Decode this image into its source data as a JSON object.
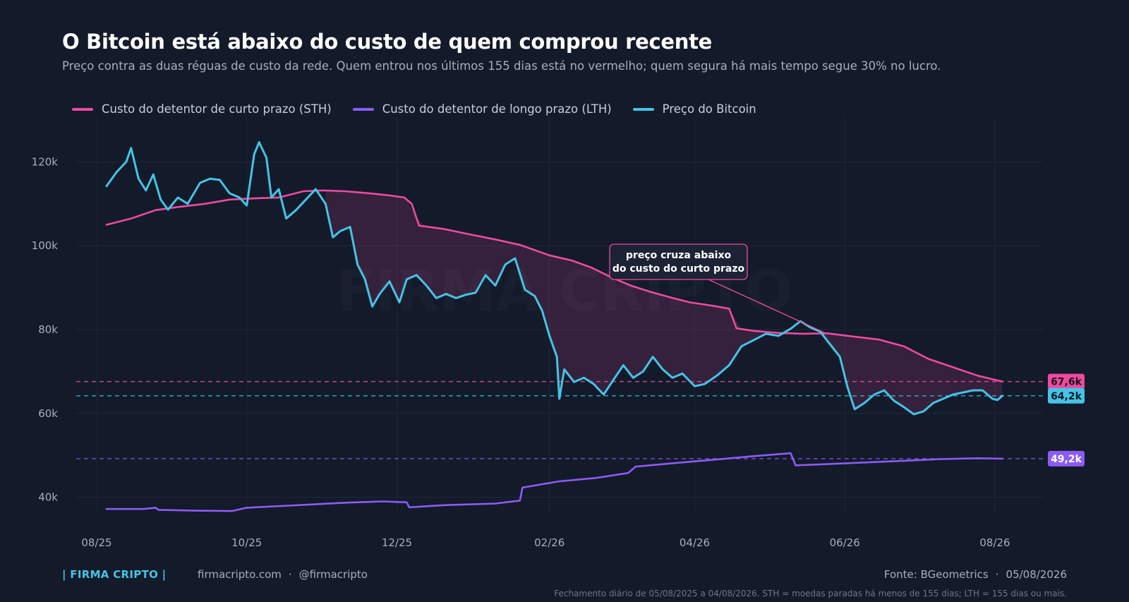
{
  "header": {
    "title": "O Bitcoin está abaixo do custo de quem comprou recente",
    "subtitle": "Preço contra as duas réguas de custo da rede. Quem entrou nos últimos 155 dias está no vermelho; quem segura há mais tempo segue 30% no lucro."
  },
  "legend": [
    {
      "label": "Custo do detentor de curto prazo (STH)",
      "color": "#ec4ba0"
    },
    {
      "label": "Custo do detentor de longo prazo (LTH)",
      "color": "#8b5cf6"
    },
    {
      "label": "Preço do Bitcoin",
      "color": "#45c3e6"
    }
  ],
  "watermark": "FIRMA CRIPTO",
  "chart_data": {
    "type": "line",
    "x_range": [
      "2025-08-05",
      "2026-08-04"
    ],
    "x_ticks": [
      {
        "date": "2025-08-01",
        "label": "08/25"
      },
      {
        "date": "2025-10-01",
        "label": "10/25"
      },
      {
        "date": "2025-12-01",
        "label": "12/25"
      },
      {
        "date": "2026-02-01",
        "label": "02/26"
      },
      {
        "date": "2026-04-01",
        "label": "04/26"
      },
      {
        "date": "2026-06-01",
        "label": "06/26"
      },
      {
        "date": "2026-08-01",
        "label": "08/26"
      }
    ],
    "y_ticks": [
      {
        "value": 40000,
        "label": "40k"
      },
      {
        "value": 60000,
        "label": "60k"
      },
      {
        "value": 80000,
        "label": "80k"
      },
      {
        "value": 100000,
        "label": "100k"
      },
      {
        "value": 120000,
        "label": "120k"
      }
    ],
    "ylim": [
      31000,
      130000
    ],
    "grid": true,
    "legend_position": "top-left",
    "series": [
      {
        "name": "Custo do detentor de curto prazo (STH)",
        "color": "#ec4ba0",
        "points": [
          [
            "2025-08-05",
            105000
          ],
          [
            "2025-08-15",
            106500
          ],
          [
            "2025-08-25",
            108500
          ],
          [
            "2025-09-04",
            109300
          ],
          [
            "2025-09-14",
            110000
          ],
          [
            "2025-09-24",
            111000
          ],
          [
            "2025-10-04",
            111300
          ],
          [
            "2025-10-14",
            111500
          ],
          [
            "2025-10-24",
            113000
          ],
          [
            "2025-11-01",
            113200
          ],
          [
            "2025-11-10",
            113000
          ],
          [
            "2025-11-20",
            112500
          ],
          [
            "2025-11-28",
            112000
          ],
          [
            "2025-12-04",
            111500
          ],
          [
            "2025-12-07",
            110000
          ],
          [
            "2025-12-10",
            104800
          ],
          [
            "2025-12-20",
            104000
          ],
          [
            "2025-12-30",
            102800
          ],
          [
            "2026-01-10",
            101500
          ],
          [
            "2026-01-20",
            100200
          ],
          [
            "2026-02-01",
            97700
          ],
          [
            "2026-02-10",
            96500
          ],
          [
            "2026-02-18",
            94800
          ],
          [
            "2026-02-26",
            92500
          ],
          [
            "2026-03-06",
            90500
          ],
          [
            "2026-03-14",
            89000
          ],
          [
            "2026-03-22",
            87700
          ],
          [
            "2026-03-30",
            86500
          ],
          [
            "2026-04-07",
            85800
          ],
          [
            "2026-04-15",
            85000
          ],
          [
            "2026-04-18",
            80300
          ],
          [
            "2026-04-25",
            79700
          ],
          [
            "2026-05-05",
            79200
          ],
          [
            "2026-05-15",
            79000
          ],
          [
            "2026-05-25",
            79100
          ],
          [
            "2026-06-05",
            78300
          ],
          [
            "2026-06-15",
            77600
          ],
          [
            "2026-06-25",
            76000
          ],
          [
            "2026-07-05",
            73000
          ],
          [
            "2026-07-15",
            71000
          ],
          [
            "2026-07-25",
            69000
          ],
          [
            "2026-08-01",
            68000
          ],
          [
            "2026-08-04",
            67600
          ]
        ]
      },
      {
        "name": "Custo do detentor de longo prazo (LTH)",
        "color": "#8b5cf6",
        "points": [
          [
            "2025-08-05",
            37200
          ],
          [
            "2025-08-20",
            37200
          ],
          [
            "2025-08-25",
            37500
          ],
          [
            "2025-08-26",
            37000
          ],
          [
            "2025-09-10",
            36800
          ],
          [
            "2025-09-25",
            36700
          ],
          [
            "2025-10-01",
            37500
          ],
          [
            "2025-10-15",
            37900
          ],
          [
            "2025-10-25",
            38200
          ],
          [
            "2025-11-10",
            38700
          ],
          [
            "2025-11-25",
            39000
          ],
          [
            "2025-12-05",
            38800
          ],
          [
            "2025-12-06",
            37600
          ],
          [
            "2025-12-20",
            38100
          ],
          [
            "2026-01-10",
            38500
          ],
          [
            "2026-01-20",
            39200
          ],
          [
            "2026-01-21",
            42300
          ],
          [
            "2026-02-05",
            43800
          ],
          [
            "2026-02-20",
            44600
          ],
          [
            "2026-03-05",
            45800
          ],
          [
            "2026-03-08",
            47300
          ],
          [
            "2026-03-25",
            48200
          ],
          [
            "2026-04-10",
            49000
          ],
          [
            "2026-04-25",
            49800
          ],
          [
            "2026-05-10",
            50500
          ],
          [
            "2026-05-12",
            47600
          ],
          [
            "2026-05-25",
            47900
          ],
          [
            "2026-06-10",
            48300
          ],
          [
            "2026-06-25",
            48700
          ],
          [
            "2026-07-10",
            49100
          ],
          [
            "2026-07-25",
            49300
          ],
          [
            "2026-08-04",
            49200
          ]
        ]
      },
      {
        "name": "Preço do Bitcoin",
        "color": "#45c3e6",
        "points": [
          [
            "2025-08-05",
            114200
          ],
          [
            "2025-08-09",
            117500
          ],
          [
            "2025-08-13",
            120000
          ],
          [
            "2025-08-15",
            123300
          ],
          [
            "2025-08-18",
            116000
          ],
          [
            "2025-08-21",
            113200
          ],
          [
            "2025-08-24",
            117000
          ],
          [
            "2025-08-27",
            111000
          ],
          [
            "2025-08-30",
            108600
          ],
          [
            "2025-09-03",
            111500
          ],
          [
            "2025-09-07",
            110000
          ],
          [
            "2025-09-12",
            115000
          ],
          [
            "2025-09-16",
            116000
          ],
          [
            "2025-09-20",
            115700
          ],
          [
            "2025-09-24",
            112500
          ],
          [
            "2025-09-28",
            111500
          ],
          [
            "2025-10-01",
            109600
          ],
          [
            "2025-10-04",
            121800
          ],
          [
            "2025-10-06",
            124700
          ],
          [
            "2025-10-09",
            121000
          ],
          [
            "2025-10-11",
            111500
          ],
          [
            "2025-10-14",
            113500
          ],
          [
            "2025-10-17",
            106500
          ],
          [
            "2025-10-21",
            108500
          ],
          [
            "2025-10-25",
            111000
          ],
          [
            "2025-10-29",
            113500
          ],
          [
            "2025-11-02",
            110000
          ],
          [
            "2025-11-05",
            102000
          ],
          [
            "2025-11-08",
            103500
          ],
          [
            "2025-11-12",
            104500
          ],
          [
            "2025-11-15",
            95500
          ],
          [
            "2025-11-18",
            92000
          ],
          [
            "2025-11-21",
            85500
          ],
          [
            "2025-11-24",
            88500
          ],
          [
            "2025-11-28",
            91500
          ],
          [
            "2025-12-02",
            86500
          ],
          [
            "2025-12-05",
            92000
          ],
          [
            "2025-12-09",
            93000
          ],
          [
            "2025-12-13",
            90500
          ],
          [
            "2025-12-17",
            87500
          ],
          [
            "2025-12-21",
            88500
          ],
          [
            "2025-12-25",
            87500
          ],
          [
            "2025-12-29",
            88300
          ],
          [
            "2026-01-02",
            88800
          ],
          [
            "2026-01-06",
            93000
          ],
          [
            "2026-01-10",
            90500
          ],
          [
            "2026-01-14",
            95500
          ],
          [
            "2026-01-18",
            97000
          ],
          [
            "2026-01-22",
            89500
          ],
          [
            "2026-01-26",
            88000
          ],
          [
            "2026-01-29",
            84500
          ],
          [
            "2026-02-01",
            78500
          ],
          [
            "2026-02-04",
            73500
          ],
          [
            "2026-02-05",
            63500
          ],
          [
            "2026-02-07",
            70500
          ],
          [
            "2026-02-11",
            67500
          ],
          [
            "2026-02-15",
            68500
          ],
          [
            "2026-02-19",
            67000
          ],
          [
            "2026-02-23",
            64500
          ],
          [
            "2026-02-27",
            68000
          ],
          [
            "2026-03-03",
            71500
          ],
          [
            "2026-03-07",
            68500
          ],
          [
            "2026-03-11",
            70000
          ],
          [
            "2026-03-15",
            73500
          ],
          [
            "2026-03-19",
            70500
          ],
          [
            "2026-03-23",
            68500
          ],
          [
            "2026-03-27",
            69500
          ],
          [
            "2026-04-01",
            66500
          ],
          [
            "2026-04-05",
            67000
          ],
          [
            "2026-04-10",
            69000
          ],
          [
            "2026-04-15",
            71500
          ],
          [
            "2026-04-20",
            76000
          ],
          [
            "2026-04-25",
            77500
          ],
          [
            "2026-04-30",
            79000
          ],
          [
            "2026-05-05",
            78500
          ],
          [
            "2026-05-10",
            80200
          ],
          [
            "2026-05-14",
            82000
          ],
          [
            "2026-05-18",
            80500
          ],
          [
            "2026-05-22",
            79500
          ],
          [
            "2026-05-26",
            76500
          ],
          [
            "2026-05-30",
            73500
          ],
          [
            "2026-06-02",
            66500
          ],
          [
            "2026-06-05",
            61000
          ],
          [
            "2026-06-09",
            62500
          ],
          [
            "2026-06-13",
            64500
          ],
          [
            "2026-06-17",
            65500
          ],
          [
            "2026-06-21",
            63000
          ],
          [
            "2026-06-25",
            61500
          ],
          [
            "2026-06-29",
            59800
          ],
          [
            "2026-07-03",
            60500
          ],
          [
            "2026-07-07",
            62500
          ],
          [
            "2026-07-11",
            63500
          ],
          [
            "2026-07-15",
            64500
          ],
          [
            "2026-07-19",
            65000
          ],
          [
            "2026-07-23",
            65500
          ],
          [
            "2026-07-27",
            65500
          ],
          [
            "2026-07-31",
            63500
          ],
          [
            "2026-08-02",
            63200
          ],
          [
            "2026-08-04",
            64200
          ]
        ]
      }
    ],
    "reference_lines": [
      {
        "value": 67600,
        "label": "67,6k",
        "color": "#ec4ba0"
      },
      {
        "value": 64200,
        "label": "64,2k",
        "color": "#45c3e6"
      },
      {
        "value": 49200,
        "label": "49,2k",
        "color": "#8b5cf6"
      }
    ],
    "annotation": {
      "text_lines": [
        "preço cruza abaixo",
        "do custo do curto prazo"
      ],
      "target": [
        "2026-05-24",
        79200
      ]
    }
  },
  "footer": {
    "brand": "| FIRMA CRIPTO |",
    "site": "firmacripto.com",
    "separator": "·",
    "handle": "@firmacripto",
    "source": "Fonte: BGeometrics",
    "date": "05/08/2026",
    "note": "Fechamento diário de 05/08/2025 a 04/08/2026. STH = moedas paradas há menos de 155 dias; LTH = 155 dias ou mais."
  }
}
